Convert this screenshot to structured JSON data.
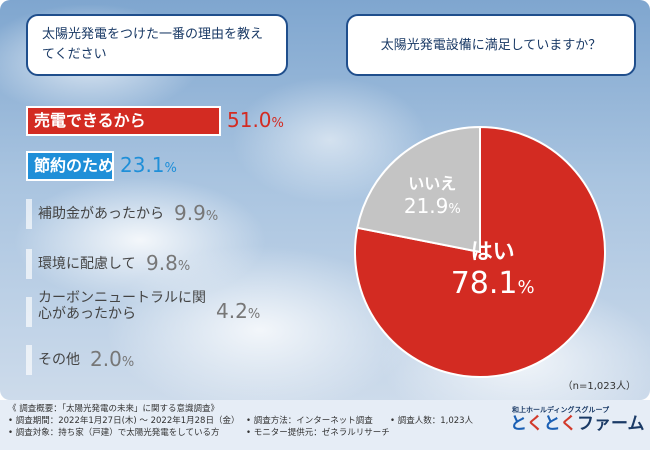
{
  "questions": {
    "left": "太陽光発電をつけた一番の理由を教えてください",
    "right": "太陽光発電設備に満足していますか？"
  },
  "chart_data": [
    {
      "type": "bar",
      "categories": [
        "売電できるから",
        "節約のため",
        "補助金があったから",
        "環境に配慮して",
        "カーボンニュートラルに関心があったから",
        "その他"
      ],
      "values": [
        51.0,
        23.1,
        9.9,
        9.8,
        4.2,
        2.0
      ],
      "value_labels": [
        "51.0",
        "23.1",
        "9.9",
        "9.8",
        "4.2",
        "2.0"
      ],
      "unit": "%",
      "colors": [
        "#d32b22",
        "#1f8fd8",
        "#c8c8c8",
        "#c8c8c8",
        "#c8c8c8",
        "#c8c8c8"
      ]
    },
    {
      "type": "pie",
      "categories": [
        "はい",
        "いいえ"
      ],
      "values": [
        78.1,
        21.9
      ],
      "value_labels": [
        "78.1",
        "21.9"
      ],
      "unit": "%",
      "colors": [
        "#d32b22",
        "#c4c4c4"
      ]
    }
  ],
  "sample_note": "（n=1,023人）",
  "footer": {
    "overview": "《 調査概要：「太陽光発電の未来」に関する意識調査》",
    "period": "• 調査期間：2022年1月27日(木) ～ 2022年1月28日（金）",
    "target": "• 調査対象：持ち家（戸建）で太陽光発電をしている方",
    "method": "• 調査方法：インターネット調査",
    "monitor": "• モニター提供元：ゼネラルリサーチ",
    "count": "• 調査人数：1,023人",
    "logo_small": "和上ホールディングスグループ",
    "logo_main_1": "と",
    "logo_main_2": "く",
    "logo_main_3": "と",
    "logo_main_4": "く",
    "logo_main_5": "ファーム"
  }
}
